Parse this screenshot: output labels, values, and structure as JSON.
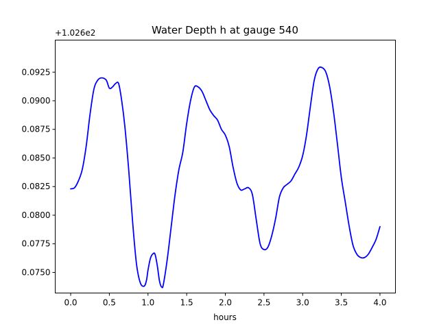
{
  "chart_data": {
    "type": "line",
    "title": "Water Depth h at gauge 540",
    "xlabel": "hours",
    "ylabel": "",
    "y_offset_label": "+1.026e2",
    "y_offset": 102.6,
    "xlim": [
      -0.2,
      4.2
    ],
    "ylim": [
      0.0732,
      0.0953
    ],
    "x_ticks": [
      0.0,
      0.5,
      1.0,
      1.5,
      2.0,
      2.5,
      3.0,
      3.5,
      4.0
    ],
    "x_tick_labels": [
      "0.0",
      "0.5",
      "1.0",
      "1.5",
      "2.0",
      "2.5",
      "3.0",
      "3.5",
      "4.0"
    ],
    "y_ticks": [
      0.075,
      0.0775,
      0.08,
      0.0825,
      0.085,
      0.0875,
      0.09,
      0.0925
    ],
    "y_tick_labels": [
      "0.0750",
      "0.0775",
      "0.0800",
      "0.0825",
      "0.0850",
      "0.0875",
      "0.0900",
      "0.0925"
    ],
    "grid": false,
    "legend": "none",
    "series": [
      {
        "color": "#0000ff",
        "x": [
          0.0,
          0.05,
          0.1,
          0.15,
          0.2,
          0.25,
          0.3,
          0.35,
          0.4,
          0.46,
          0.5,
          0.54,
          0.58,
          0.62,
          0.66,
          0.7,
          0.75,
          0.8,
          0.85,
          0.9,
          0.95,
          0.98,
          1.0,
          1.03,
          1.06,
          1.09,
          1.12,
          1.15,
          1.18,
          1.2,
          1.25,
          1.3,
          1.35,
          1.4,
          1.45,
          1.5,
          1.55,
          1.6,
          1.65,
          1.7,
          1.75,
          1.8,
          1.85,
          1.9,
          1.95,
          2.0,
          2.05,
          2.1,
          2.15,
          2.2,
          2.25,
          2.3,
          2.35,
          2.4,
          2.45,
          2.5,
          2.55,
          2.6,
          2.65,
          2.7,
          2.75,
          2.8,
          2.85,
          2.9,
          2.95,
          3.0,
          3.05,
          3.1,
          3.15,
          3.2,
          3.25,
          3.3,
          3.35,
          3.4,
          3.45,
          3.5,
          3.55,
          3.6,
          3.65,
          3.7,
          3.75,
          3.8,
          3.85,
          3.9,
          3.95,
          4.0
        ],
        "y": [
          0.0823,
          0.0824,
          0.083,
          0.084,
          0.086,
          0.0888,
          0.091,
          0.0918,
          0.092,
          0.0918,
          0.0911,
          0.0912,
          0.0915,
          0.0915,
          0.09,
          0.0878,
          0.084,
          0.0795,
          0.0758,
          0.0741,
          0.0738,
          0.0743,
          0.0752,
          0.0762,
          0.0766,
          0.0766,
          0.0756,
          0.0742,
          0.0737,
          0.074,
          0.0762,
          0.079,
          0.0818,
          0.084,
          0.0855,
          0.088,
          0.09,
          0.0912,
          0.0912,
          0.0908,
          0.09,
          0.0892,
          0.0887,
          0.0883,
          0.0875,
          0.087,
          0.086,
          0.0842,
          0.0828,
          0.0822,
          0.0823,
          0.0824,
          0.0818,
          0.0796,
          0.0775,
          0.077,
          0.0772,
          0.0782,
          0.0797,
          0.0816,
          0.0824,
          0.0827,
          0.083,
          0.0836,
          0.0842,
          0.0852,
          0.087,
          0.0895,
          0.0918,
          0.0928,
          0.0929,
          0.0925,
          0.0912,
          0.089,
          0.0862,
          0.0833,
          0.0812,
          0.0791,
          0.0774,
          0.0766,
          0.0763,
          0.0763,
          0.0766,
          0.0772,
          0.0779,
          0.079
        ]
      }
    ]
  }
}
